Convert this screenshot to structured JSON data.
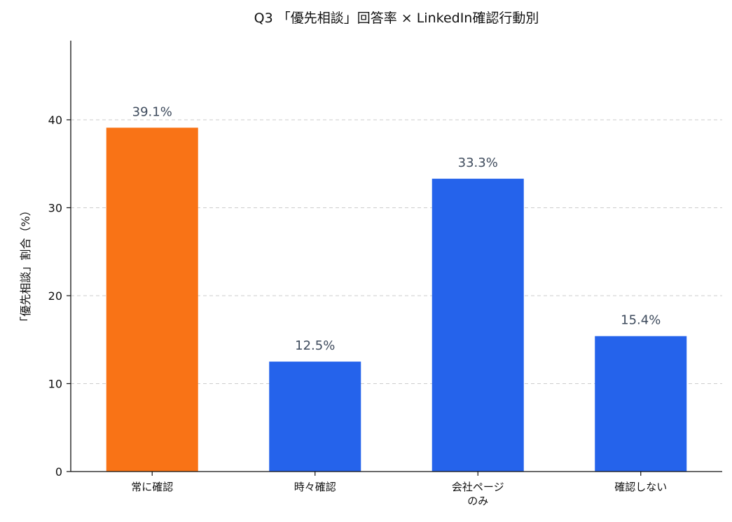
{
  "chart_data": {
    "type": "bar",
    "title": "Q3 「優先相談」回答率 × LinkedIn確認行動別",
    "xlabel": "",
    "ylabel": "「優先相談」割合（%）",
    "categories": [
      [
        "常に確認"
      ],
      [
        "時々確認"
      ],
      [
        "会社ページ",
        "のみ"
      ],
      [
        "確認しない"
      ]
    ],
    "values": [
      39.1,
      12.5,
      33.3,
      15.4
    ],
    "value_labels": [
      "39.1%",
      "12.5%",
      "33.3%",
      "15.4%"
    ],
    "bar_colors": [
      "#f97316",
      "#2563eb",
      "#2563eb",
      "#2563eb"
    ],
    "ylim": [
      0,
      49
    ],
    "yticks": [
      0,
      10,
      20,
      30,
      40
    ],
    "grid": "horizontal dashed",
    "legend": "none"
  },
  "colors": {
    "highlight": "#f97316",
    "bar": "#2563eb",
    "value_label": "#3d4a5c",
    "grid": "#cccccc",
    "axis": "#111111"
  }
}
